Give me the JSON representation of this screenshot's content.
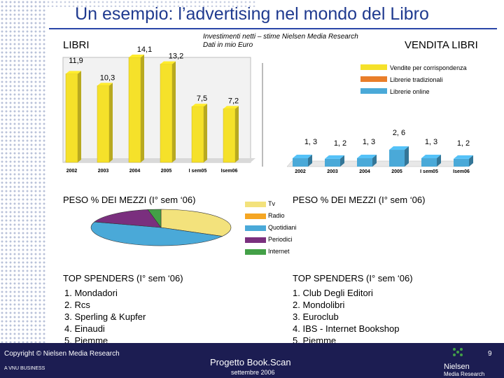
{
  "header": {
    "title": "Un esempio: l’advertising nel mondo del Libro"
  },
  "note": {
    "line1": "Investimenti netti – stime Nielsen Media Research",
    "line2": "Dati in mio Euro"
  },
  "colors": {
    "yellow": "#f5e12a",
    "orange": "#e97e2a",
    "blue": "#4aa9d8",
    "purple": "#7a2f7e",
    "green": "#43a047",
    "tv": "#f3e27c"
  },
  "chart_data": [
    {
      "type": "bar",
      "title": "LIBRI",
      "categories": [
        "2002",
        "2003",
        "2004",
        "2005",
        "I sem05",
        "Isem06"
      ],
      "values": [
        11.9,
        10.3,
        14.1,
        13.2,
        7.5,
        7.2
      ],
      "labels": [
        "11,9",
        "10,3",
        "14,1",
        "13,2",
        "7,5",
        "7,2"
      ]
    },
    {
      "type": "bar",
      "title": "VENDITA LIBRI",
      "categories": [
        "2002",
        "2003",
        "2004",
        "2005",
        "I sem05",
        "Isem06"
      ],
      "series": [
        {
          "name": "Vendite per corrispondenza",
          "values": [
            null,
            null,
            null,
            null,
            null,
            null
          ]
        },
        {
          "name": "Librerie tradizionali",
          "values": [
            null,
            null,
            null,
            null,
            null,
            null
          ]
        },
        {
          "name": "Librerie online",
          "values": [
            1.3,
            1.2,
            1.3,
            2.6,
            1.3,
            1.2
          ]
        }
      ],
      "labels": [
        "1, 3",
        "1, 2",
        "1, 3",
        "2, 6",
        "1, 3",
        "1, 2"
      ]
    },
    {
      "type": "pie",
      "title": "PESO % DEI MEZZI (I° sem ‘06)",
      "categories": [
        "Tv",
        "Radio",
        "Quotidiani",
        "Periodici",
        "Internet"
      ],
      "values": [
        33,
        0,
        47,
        17,
        3
      ]
    }
  ],
  "pie2_title": "PESO % DEI MEZZI (I° sem ‘06)",
  "top_left": {
    "title": "TOP SPENDERS (I° sem ‘06)",
    "items": [
      "1. Mondadori",
      "2. Rcs",
      "3. Sperling & Kupfer",
      "4. Einaudi",
      "5. Piemme"
    ]
  },
  "top_right": {
    "title": "TOP SPENDERS (I° sem ‘06)",
    "items": [
      "1. Club Degli Editori",
      "2. Mondolibri",
      "3. Euroclub",
      "4. IBS - Internet Bookshop",
      "5. Piemme"
    ]
  },
  "footer": {
    "copyright": "Copyright © Nielsen Media Research",
    "company": "A VNU BUSINESS",
    "project": "Progetto Book.Scan",
    "date": "settembre 2006",
    "page": "9",
    "brand1": "Nielsen",
    "brand2": "Media Research"
  }
}
